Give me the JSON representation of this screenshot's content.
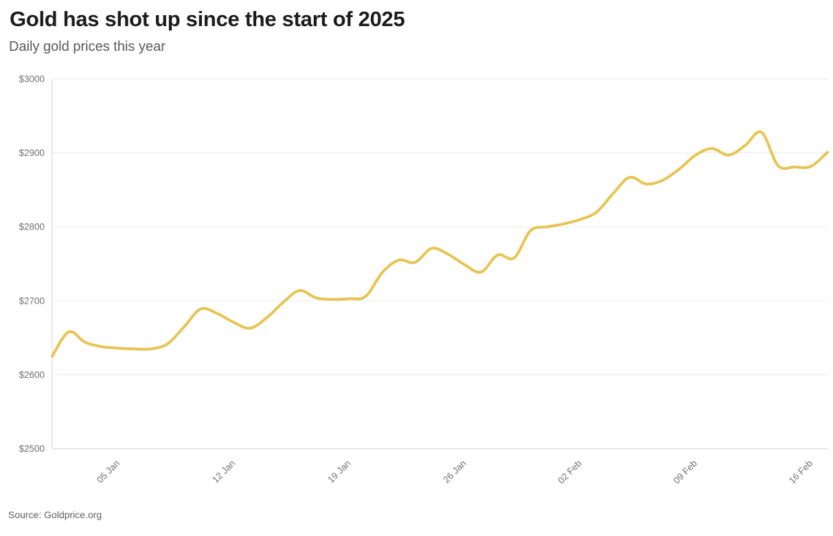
{
  "header": {
    "title": "Gold has shot up since the start of 2025",
    "subtitle": "Daily gold prices this year"
  },
  "footer": {
    "source": "Source: Goldprice.org"
  },
  "colors": {
    "line": "#e7c452",
    "gridline": "#ececec",
    "axis_line": "#d9d9d9",
    "title_text": "#1c1c1c",
    "subtitle_text": "#595959",
    "tick_text": "#707070",
    "source_text": "#5f5f5f",
    "background": "#ffffff"
  },
  "chart_data": {
    "type": "line",
    "title": "Gold has shot up since the start of 2025",
    "subtitle": "Daily gold prices this year",
    "source": "Source: Goldprice.org",
    "xlabel": "",
    "ylabel": "",
    "ylim": [
      2500,
      3000
    ],
    "grid": "horizontal-only",
    "legend": "none",
    "line_color": "#e7c452",
    "x": [
      "01 Jan",
      "02 Jan",
      "03 Jan",
      "04 Jan",
      "05 Jan",
      "06 Jan",
      "07 Jan",
      "08 Jan",
      "09 Jan",
      "10 Jan",
      "11 Jan",
      "12 Jan",
      "13 Jan",
      "14 Jan",
      "15 Jan",
      "16 Jan",
      "17 Jan",
      "18 Jan",
      "19 Jan",
      "20 Jan",
      "21 Jan",
      "22 Jan",
      "23 Jan",
      "24 Jan",
      "25 Jan",
      "26 Jan",
      "27 Jan",
      "28 Jan",
      "29 Jan",
      "30 Jan",
      "31 Jan",
      "01 Feb",
      "02 Feb",
      "03 Feb",
      "04 Feb",
      "05 Feb",
      "06 Feb",
      "07 Feb",
      "08 Feb",
      "09 Feb",
      "10 Feb",
      "11 Feb",
      "12 Feb",
      "13 Feb",
      "14 Feb",
      "15 Feb",
      "16 Feb",
      "17 Feb"
    ],
    "values": [
      2625,
      2658,
      2644,
      2638,
      2636,
      2635,
      2635,
      2642,
      2665,
      2689,
      2683,
      2671,
      2663,
      2677,
      2698,
      2714,
      2704,
      2702,
      2703,
      2706,
      2738,
      2755,
      2752,
      2771,
      2763,
      2749,
      2739,
      2762,
      2758,
      2795,
      2800,
      2804,
      2810,
      2820,
      2845,
      2867,
      2858,
      2863,
      2878,
      2897,
      2906,
      2897,
      2910,
      2928,
      2883,
      2881,
      2882,
      2901
    ],
    "y_ticks": [
      {
        "label": "$3000",
        "value": 3000
      },
      {
        "label": "$2900",
        "value": 2900
      },
      {
        "label": "$2800",
        "value": 2800
      },
      {
        "label": "$2700",
        "value": 2700
      },
      {
        "label": "$2600",
        "value": 2600
      },
      {
        "label": "$2500",
        "value": 2500
      }
    ],
    "x_ticks": [
      {
        "label": "05 Jan",
        "index": 4
      },
      {
        "label": "12 Jan",
        "index": 11
      },
      {
        "label": "19 Jan",
        "index": 18
      },
      {
        "label": "26 Jan",
        "index": 25
      },
      {
        "label": "02 Feb",
        "index": 32
      },
      {
        "label": "09 Feb",
        "index": 39
      },
      {
        "label": "16 Feb",
        "index": 46
      }
    ]
  }
}
